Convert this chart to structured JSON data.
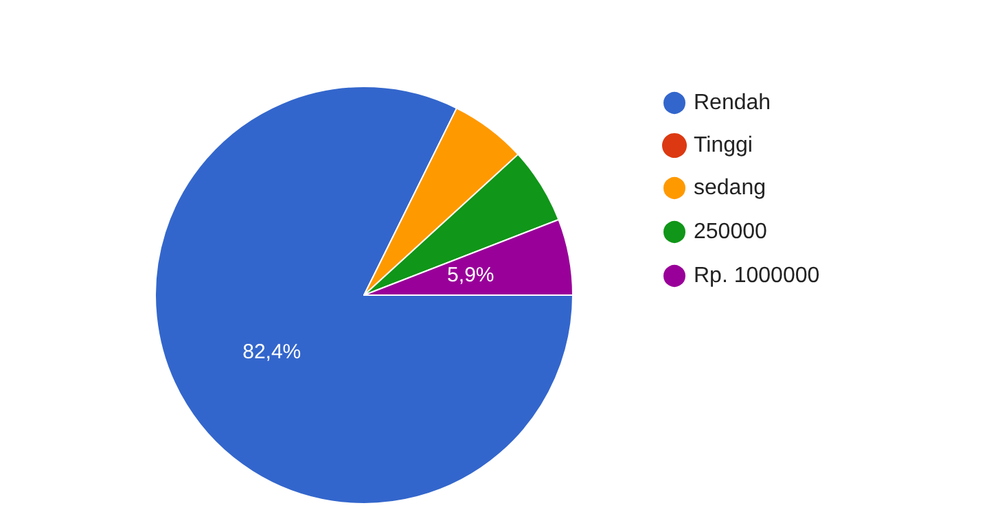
{
  "chart_data": {
    "type": "pie",
    "categories": [
      "Rendah",
      "Tinggi",
      "sedang",
      "250000",
      "Rp. 1000000"
    ],
    "values": [
      82.4,
      0,
      5.9,
      5.9,
      5.9
    ],
    "colors": [
      "#3366cc",
      "#dc3912",
      "#ff9900",
      "#109618",
      "#990099"
    ],
    "value_labels": [
      "82,4%",
      null,
      null,
      null,
      "5,9%"
    ],
    "legend": "right"
  }
}
